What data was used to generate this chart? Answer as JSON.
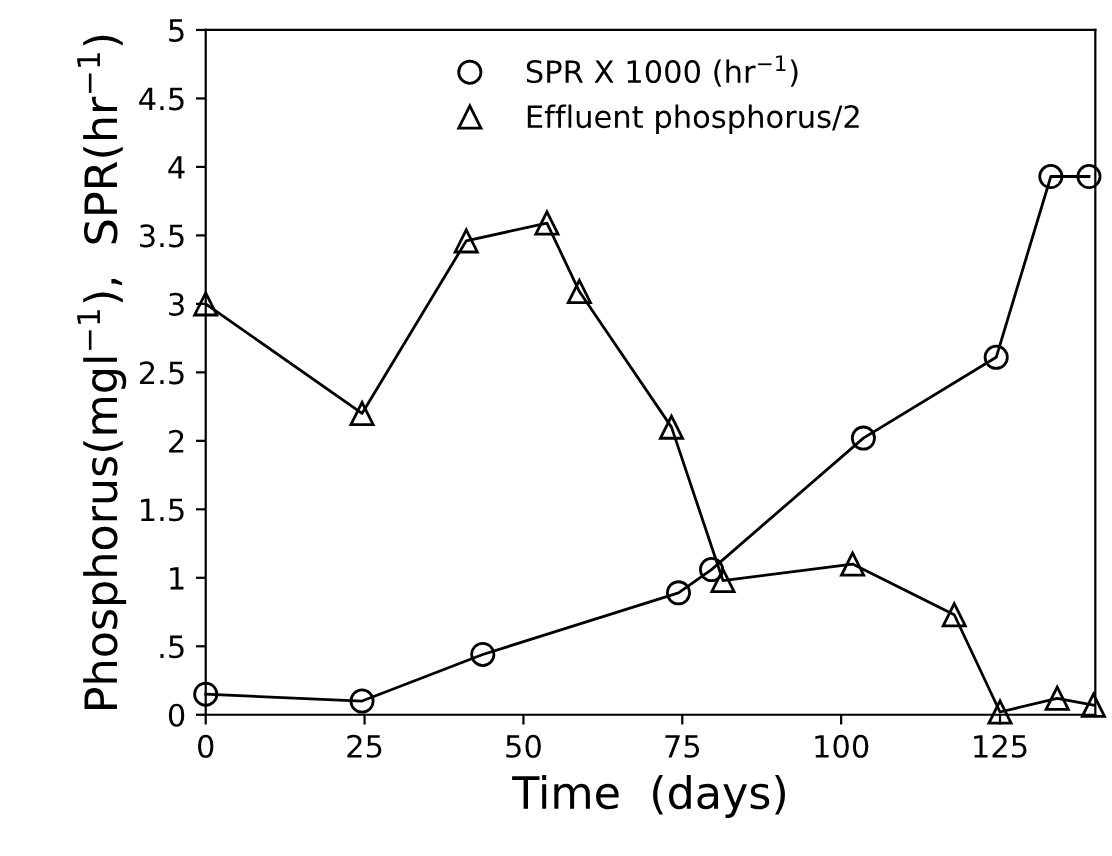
{
  "chart_data": {
    "type": "line",
    "xlabel": "Time  (days)",
    "ylabel": "Phosphorus(mgl$^{−1}$),  SPR(hr$^{−1}$)",
    "xlim": [
      0,
      140
    ],
    "ylim": [
      0,
      5
    ],
    "xticks": [
      0,
      25,
      50,
      75,
      100,
      125
    ],
    "yticks": [
      0,
      {
        "value": 0.5,
        "label": ".5"
      },
      1,
      1.5,
      2,
      2.5,
      3,
      3.5,
      4,
      4.5,
      5
    ],
    "grid": false,
    "legend": "top",
    "line_style": "solid",
    "series": [
      {
        "name": "SPR X 1000 (hr$^{−1}$)",
        "color": "#000000",
        "marker": "circle",
        "x": [
          0,
          24.6,
          43.6,
          74.4,
          79.6,
          103.5,
          124.4,
          133,
          139
        ],
        "values": [
          0.15,
          0.1,
          0.44,
          0.89,
          1.06,
          2.02,
          2.61,
          3.93,
          3.93
        ]
      },
      {
        "name": "Effluent phosphorus/2",
        "color": "#000000",
        "marker": "triangle",
        "x": [
          0,
          24.6,
          41,
          53.7,
          58.8,
          73.3,
          81.4,
          101.8,
          117.8,
          125,
          134,
          139.7
        ],
        "values": [
          3.0,
          2.2,
          3.46,
          3.59,
          3.09,
          2.1,
          0.98,
          1.1,
          0.73,
          0.02,
          0.12,
          0.07
        ]
      }
    ]
  }
}
